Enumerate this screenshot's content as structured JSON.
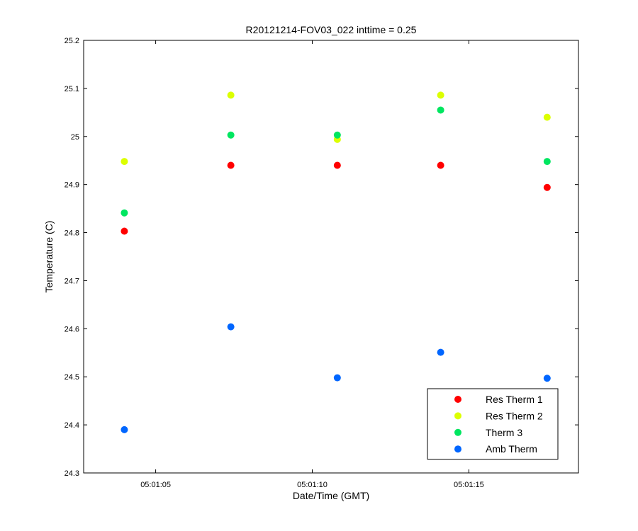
{
  "chart_data": {
    "type": "scatter",
    "title": "R20121214-FOV03_022 inttime = 0.25",
    "xlabel": "Date/Time (GMT)",
    "ylabel": "Temperature (C)",
    "xlim": [
      "05:01:02.7",
      "05:01:18.5"
    ],
    "ylim": [
      24.3,
      25.2
    ],
    "x_ticks": [
      "05:01:05",
      "05:01:10",
      "05:01:15"
    ],
    "y_ticks": [
      "24.3",
      "24.4",
      "24.5",
      "24.6",
      "24.7",
      "24.8",
      "24.9",
      "25",
      "25.1",
      "25.2"
    ],
    "x": [
      "05:01:04.0",
      "05:01:07.4",
      "05:01:10.8",
      "05:01:14.1",
      "05:01:17.5"
    ],
    "grid": false,
    "legend_position": "bottom-right",
    "series": [
      {
        "name": "Res Therm 1",
        "color": "#ff0000",
        "values": [
          24.803,
          24.94,
          24.94,
          24.94,
          24.894
        ]
      },
      {
        "name": "Res Therm 2",
        "color": "#dcff00",
        "values": [
          24.948,
          25.086,
          24.994,
          25.086,
          25.04
        ]
      },
      {
        "name": "Therm 3",
        "color": "#00e660",
        "values": [
          24.841,
          25.003,
          25.003,
          25.055,
          24.948
        ]
      },
      {
        "name": "Amb Therm",
        "color": "#0066ff",
        "values": [
          24.39,
          24.604,
          24.498,
          24.551,
          24.497
        ]
      }
    ]
  }
}
